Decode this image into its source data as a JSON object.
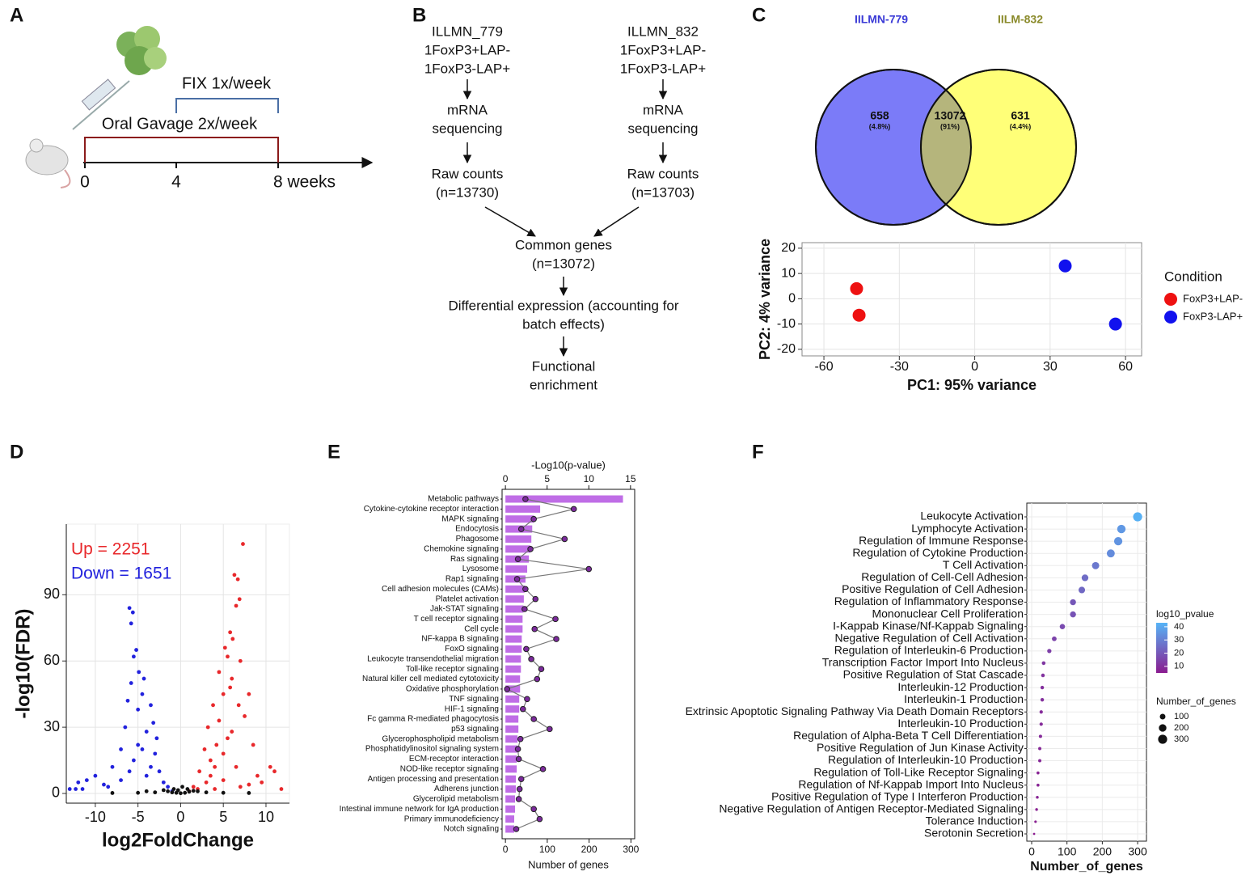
{
  "panel_labels": [
    "A",
    "B",
    "C",
    "D",
    "E",
    "F"
  ],
  "timeline": {
    "ticks": [
      "0",
      "4",
      "8 weeks"
    ],
    "brackets": [
      "Oral Gavage 2x/week",
      "FIX 1x/week"
    ]
  },
  "flowchart": {
    "nodes": [
      {
        "lines": [
          "ILLMN_779",
          "1FoxP3+LAP-",
          "1FoxP3-LAP+"
        ]
      },
      {
        "lines": [
          "mRNA",
          "sequencing"
        ]
      },
      {
        "lines": [
          "Raw counts",
          "(n=13730)"
        ]
      },
      {
        "lines": [
          "ILLMN_832",
          "1FoxP3+LAP-",
          "1FoxP3-LAP+"
        ]
      },
      {
        "lines": [
          "mRNA",
          "sequencing"
        ]
      },
      {
        "lines": [
          "Raw counts",
          "(n=13703)"
        ]
      },
      {
        "lines": [
          "Common genes",
          "(n=13072)"
        ]
      },
      {
        "lines": [
          "Differential expression (accounting for",
          "batch effects)"
        ]
      },
      {
        "lines": [
          "Functional",
          "enrichment"
        ]
      }
    ]
  },
  "chart_data": [
    {
      "type": "venn",
      "sets": [
        "IILMN-779",
        "IILM-832"
      ],
      "colors": [
        "#7b7bf8",
        "#ffff78",
        "#b5b57c"
      ],
      "set_label_colors": [
        "#3a3ad6",
        "#8a8a2a"
      ],
      "values": [
        658,
        13072,
        631
      ],
      "percent_labels": [
        "(4.8%)",
        "(91%)",
        "(4.4%)"
      ]
    },
    {
      "type": "scatter",
      "xlabel": "PC1: 95% variance",
      "ylabel": "PC2: 4% variance",
      "legend_title": "Condition",
      "grid": true,
      "xlim": [
        -68.7,
        66.4
      ],
      "ylim": [
        -22.6,
        22.2
      ],
      "xticks": [
        -60,
        -30,
        0,
        30,
        60
      ],
      "yticks": [
        20,
        10,
        0,
        -10,
        -20
      ],
      "series": [
        {
          "name": "FoxP3+LAP-",
          "color": "#ee1111",
          "x": [
            -47,
            -46
          ],
          "values": [
            4,
            -6.5
          ]
        },
        {
          "name": "FoxP3-LAP+",
          "color": "#1111ee",
          "x": [
            36,
            56
          ],
          "values": [
            13,
            -10
          ]
        }
      ]
    },
    {
      "type": "scatter",
      "xlabel": "log2FoldChange",
      "ylabel": "-log10(FDR)",
      "grid": true,
      "xlim": [
        -13.4,
        12.75
      ],
      "ylim": [
        -4.4,
        122
      ],
      "xticks": [
        -10,
        -5,
        0,
        5,
        10
      ],
      "yticks": [
        0,
        30,
        60,
        90
      ],
      "annotations": [
        {
          "text": "Up = 2251",
          "color": "#e8282b"
        },
        {
          "text": "Down = 1651",
          "color": "#2222dd"
        }
      ],
      "series": [
        {
          "color": "#e8282b",
          "x": [
            7.3,
            6.3,
            6.7,
            6.9,
            6.5,
            5.8,
            6.1,
            5.2,
            5.5,
            7,
            4.5,
            6,
            8,
            5,
            3.8,
            7.5,
            4.5,
            3.2,
            6,
            8.5,
            2.8,
            5,
            10.5,
            11,
            9,
            2.2,
            4,
            6.5,
            3,
            11.8,
            8,
            1.5,
            5,
            2,
            7,
            1,
            4,
            9.5,
            3.5,
            5.5,
            4.2,
            6.8,
            5.8,
            3.5
          ],
          "values": [
            113,
            99,
            97,
            88,
            85,
            73,
            70,
            66,
            62,
            60,
            55,
            52,
            45,
            45,
            40,
            35,
            33,
            30,
            28,
            22,
            20,
            18,
            12,
            10,
            8,
            10,
            12,
            12,
            5,
            2,
            4,
            3,
            6,
            2,
            3,
            1,
            2,
            5,
            15,
            25,
            22,
            40,
            48,
            8
          ]
        },
        {
          "color": "#2222dd",
          "x": [
            -6,
            -5.6,
            -5.8,
            -5.2,
            -5.5,
            -4.9,
            -4.3,
            -5.8,
            -4.5,
            -3.5,
            -6.2,
            -5,
            -3.2,
            -6.5,
            -4,
            -2.8,
            -7,
            -5,
            -3,
            -8,
            -10,
            -11,
            -12,
            -12.3,
            -11.5,
            -13,
            -9,
            -6,
            -4,
            -2.5,
            -2,
            -1.5,
            -7,
            -3.5,
            -5.5,
            -4.5,
            -1,
            -8.5
          ],
          "values": [
            84,
            82,
            77,
            65,
            62,
            55,
            52,
            50,
            45,
            40,
            42,
            38,
            32,
            30,
            28,
            25,
            20,
            22,
            18,
            12,
            8,
            6,
            5,
            2,
            2,
            2,
            4,
            10,
            8,
            10,
            5,
            3,
            6,
            12,
            15,
            20,
            1,
            3
          ]
        },
        {
          "color": "#111111",
          "x": [
            -1.5,
            -1,
            -0.5,
            0,
            0.5,
            1,
            1.5,
            -2,
            2,
            -3,
            3,
            -0.8,
            0.8,
            -5,
            5,
            -8,
            8,
            0.2,
            -0.3,
            -4
          ],
          "values": [
            1,
            0.5,
            0.3,
            0.1,
            0.3,
            0.8,
            1.2,
            1.5,
            1,
            0.5,
            0.5,
            2,
            2,
            0.3,
            0.3,
            0.2,
            0.2,
            3,
            1.5,
            1
          ]
        }
      ]
    },
    {
      "type": "bar_line",
      "orientation": "horizontal",
      "xlabel": "Number of genes",
      "x2label": "-Log10(p-value)",
      "xlim": [
        -8,
        309
      ],
      "xticks": [
        0,
        100,
        200,
        300
      ],
      "x2lim": [
        -0.4,
        15.5
      ],
      "x2ticks": [
        0,
        5,
        10,
        15
      ],
      "categories": [
        "Metabolic pathways",
        "Cytokine-cytokine receptor interaction",
        "MAPK signaling",
        "Endocytosis",
        "Phagosome",
        "Chemokine signaling",
        "Ras signaling",
        "Lysosome",
        "Rap1 signaling",
        "Cell adhesion molecules (CAMs)",
        "Platelet activation",
        "Jak-STAT signaling",
        "T cell receptor signaling",
        "Cell cycle",
        "NF-kappa B signaling",
        "FoxO signaling",
        "Leukocyte transendothelial migration",
        "Toll-like receptor signaling",
        "Natural killer cell mediated cytotoxicity",
        "Oxidative phosphorylation",
        "TNF signaling",
        "HIF-1 signaling",
        "Fc gamma R-mediated phagocytosis",
        "p53 signaling",
        "Glycerophospholipid metabolism",
        "Phosphatidylinositol signaling system",
        "ECM-receptor interaction",
        "NOD-like receptor signaling",
        "Antigen processing and presentation",
        "Adherens junction",
        "Glycerolipid metabolism",
        "Intestinal immune network for IgA production",
        "Primary immunodeficiency",
        "Notch signaling"
      ],
      "series": [
        {
          "color": "#bf6de6",
          "values": [
            281,
            83,
            68,
            64,
            62,
            60,
            56,
            52,
            48,
            46,
            44,
            43,
            41,
            41,
            39,
            39,
            37,
            37,
            35,
            35,
            33,
            33,
            31,
            31,
            29,
            29,
            27,
            27,
            25,
            25,
            23,
            23,
            21,
            21
          ]
        },
        {
          "color": "#7b2a9c",
          "axis": "x2",
          "values": [
            2.4,
            8.2,
            3.4,
            1.9,
            7.1,
            3.0,
            1.5,
            10,
            1.4,
            2.4,
            3.6,
            2.3,
            6.0,
            3.5,
            6.1,
            2.5,
            3.1,
            4.3,
            3.8,
            0.2,
            2.6,
            2.1,
            3.4,
            5.3,
            1.8,
            1.5,
            1.6,
            4.5,
            1.9,
            1.7,
            1.6,
            3.4,
            4.1,
            1.3
          ]
        }
      ]
    },
    {
      "type": "dot",
      "xlabel": "Number_of_genes",
      "xlim": [
        -13.7,
        325
      ],
      "xticks": [
        0,
        100,
        200,
        300
      ],
      "grid": true,
      "categories": [
        "Leukocyte Activation",
        "Lymphocyte Activation",
        "Regulation of Immune Response",
        "Regulation of Cytokine Production",
        "T Cell Activation",
        "Regulation of Cell-Cell Adhesion",
        "Positive Regulation of Cell Adhesion",
        "Regulation of Inflammatory Response",
        "Mononuclear Cell Proliferation",
        "I-Kappab Kinase/Nf-Kappab Signaling",
        "Negative Regulation of Cell Activation",
        "Regulation of Interleukin-6 Production",
        "Transcription Factor Import Into Nucleus",
        "Positive Regulation of Stat Cascade",
        "Interleukin-12 Production",
        "Interleukin-1 Production",
        "Extrinsic Apoptotic Signaling Pathway Via Death Domain Receptors",
        "Interleukin-10 Production",
        "Regulation of Alpha-Beta T Cell Differentiation",
        "Positive Regulation of Jun Kinase Activity",
        "Regulation of Interleukin-10 Production",
        "Regulation of Toll-Like Receptor Signaling",
        "Regulation of Nf-Kappab Import Into Nucleus",
        "Positive Regulation of Type I Interferon Production",
        "Negative Regulation of Antigen Receptor-Mediated Signaling",
        "Tolerance Induction",
        "Serotonin Secretion"
      ],
      "values": [
        300,
        254,
        245,
        224,
        181,
        151,
        142,
        117,
        117,
        87,
        64,
        50,
        34,
        32,
        30,
        30,
        27,
        27,
        25,
        23,
        23,
        18,
        18,
        16,
        14,
        11,
        7
      ],
      "pvalues": [
        42,
        36,
        35,
        33,
        28,
        25,
        24,
        20,
        19,
        17,
        15,
        14,
        12,
        11,
        10,
        10,
        9,
        9,
        9,
        8,
        8,
        7,
        7,
        7,
        6,
        6,
        5
      ],
      "colorbar": {
        "title": "log10_pvalue",
        "lim": [
          5,
          43
        ],
        "ticks": [
          10,
          20,
          30,
          40
        ],
        "colors": [
          "#8a1b8f",
          "#56b4f7"
        ]
      },
      "size_legend": {
        "title": "Number_of_genes",
        "values": [
          100,
          200,
          300
        ]
      }
    }
  ]
}
